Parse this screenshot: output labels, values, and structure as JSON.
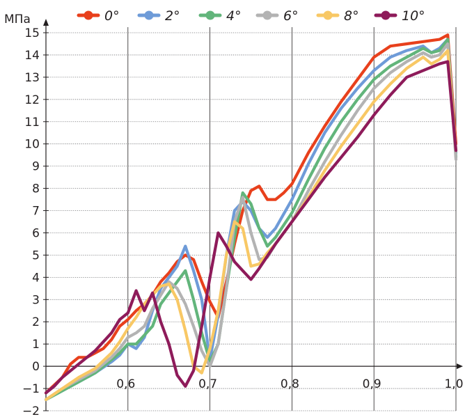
{
  "chart_data": {
    "type": "line",
    "ylabel": "МПа",
    "ylim": [
      -2,
      15
    ],
    "xlim": [
      0.5,
      1.0
    ],
    "yticks": [
      "−2",
      "−1",
      "0",
      "1",
      "2",
      "3",
      "4",
      "5",
      "6",
      "7",
      "8",
      "9",
      "10",
      "11",
      "12",
      "13",
      "14",
      "15"
    ],
    "xticks": [
      "0,6",
      "0,7",
      "0,8",
      "0,9",
      "1,0"
    ],
    "grid": true,
    "legend_position": "top",
    "series": [
      {
        "name": "0°",
        "color": "#e8401c",
        "x": [
          0.5,
          0.52,
          0.53,
          0.54,
          0.55,
          0.56,
          0.57,
          0.58,
          0.59,
          0.6,
          0.61,
          0.62,
          0.63,
          0.64,
          0.65,
          0.66,
          0.67,
          0.68,
          0.69,
          0.7,
          0.71,
          0.72,
          0.73,
          0.74,
          0.75,
          0.76,
          0.77,
          0.78,
          0.79,
          0.8,
          0.82,
          0.84,
          0.86,
          0.88,
          0.9,
          0.92,
          0.94,
          0.96,
          0.98,
          0.99,
          1.0
        ],
        "y": [
          -1.2,
          -0.5,
          0.1,
          0.4,
          0.4,
          0.6,
          0.8,
          1.2,
          1.8,
          2.1,
          2.5,
          2.8,
          3.2,
          3.8,
          4.2,
          4.7,
          5.0,
          4.8,
          3.8,
          2.9,
          2.2,
          3.8,
          5.5,
          7.0,
          7.9,
          8.1,
          7.5,
          7.5,
          7.8,
          8.2,
          9.6,
          10.8,
          11.9,
          12.9,
          13.9,
          14.4,
          14.5,
          14.6,
          14.7,
          14.9,
          10.0
        ]
      },
      {
        "name": "2°",
        "color": "#6e9bd8",
        "x": [
          0.5,
          0.52,
          0.54,
          0.56,
          0.58,
          0.59,
          0.6,
          0.61,
          0.62,
          0.63,
          0.64,
          0.65,
          0.66,
          0.67,
          0.68,
          0.69,
          0.7,
          0.71,
          0.72,
          0.73,
          0.74,
          0.75,
          0.76,
          0.77,
          0.78,
          0.8,
          0.82,
          0.84,
          0.86,
          0.88,
          0.9,
          0.92,
          0.94,
          0.96,
          0.97,
          0.98,
          0.99,
          1.0
        ],
        "y": [
          -1.5,
          -1.1,
          -0.7,
          -0.3,
          0.2,
          0.5,
          1.0,
          0.8,
          1.3,
          2.5,
          3.5,
          4.0,
          4.5,
          5.4,
          4.3,
          3.0,
          0.3,
          2.3,
          5.0,
          7.0,
          7.4,
          7.0,
          6.2,
          5.8,
          6.2,
          7.5,
          9.1,
          10.5,
          11.6,
          12.5,
          13.3,
          13.9,
          14.2,
          14.4,
          14.1,
          14.3,
          14.7,
          9.6
        ]
      },
      {
        "name": "4°",
        "color": "#62b57b",
        "x": [
          0.5,
          0.52,
          0.54,
          0.56,
          0.58,
          0.59,
          0.6,
          0.61,
          0.62,
          0.63,
          0.64,
          0.65,
          0.66,
          0.67,
          0.68,
          0.69,
          0.7,
          0.71,
          0.72,
          0.73,
          0.74,
          0.75,
          0.76,
          0.77,
          0.78,
          0.8,
          0.82,
          0.84,
          0.86,
          0.88,
          0.9,
          0.92,
          0.94,
          0.96,
          0.97,
          0.98,
          0.99,
          1.0
        ],
        "y": [
          -1.5,
          -1.1,
          -0.7,
          -0.3,
          0.3,
          0.6,
          1.0,
          1.0,
          1.4,
          1.8,
          2.8,
          3.3,
          3.8,
          4.3,
          3.0,
          1.5,
          0.2,
          1.0,
          3.5,
          5.8,
          7.8,
          7.3,
          6.2,
          5.4,
          5.8,
          6.9,
          8.4,
          9.8,
          11.0,
          12.0,
          12.9,
          13.5,
          13.9,
          14.3,
          14.1,
          14.2,
          14.7,
          9.4
        ]
      },
      {
        "name": "6°",
        "color": "#b3b3b3",
        "x": [
          0.5,
          0.52,
          0.54,
          0.56,
          0.58,
          0.59,
          0.6,
          0.61,
          0.62,
          0.63,
          0.64,
          0.65,
          0.66,
          0.67,
          0.68,
          0.69,
          0.7,
          0.71,
          0.72,
          0.73,
          0.74,
          0.75,
          0.76,
          0.77,
          0.78,
          0.8,
          0.82,
          0.84,
          0.86,
          0.88,
          0.9,
          0.92,
          0.94,
          0.96,
          0.97,
          0.98,
          0.99,
          1.0
        ],
        "y": [
          -1.5,
          -1.0,
          -0.6,
          -0.2,
          0.4,
          0.8,
          1.3,
          1.5,
          1.8,
          2.6,
          3.2,
          3.8,
          3.5,
          2.8,
          1.8,
          0.7,
          0.0,
          1.0,
          3.5,
          6.5,
          7.6,
          6.0,
          4.8,
          4.9,
          5.5,
          6.5,
          7.9,
          9.2,
          10.4,
          11.5,
          12.5,
          13.2,
          13.7,
          14.1,
          13.9,
          14.0,
          14.5,
          9.3
        ]
      },
      {
        "name": "8°",
        "color": "#f8c865",
        "x": [
          0.5,
          0.52,
          0.54,
          0.56,
          0.58,
          0.59,
          0.6,
          0.61,
          0.62,
          0.63,
          0.64,
          0.65,
          0.66,
          0.67,
          0.68,
          0.69,
          0.7,
          0.71,
          0.72,
          0.73,
          0.74,
          0.75,
          0.76,
          0.77,
          0.78,
          0.8,
          0.82,
          0.84,
          0.86,
          0.88,
          0.9,
          0.92,
          0.94,
          0.96,
          0.97,
          0.98,
          0.99,
          1.0
        ],
        "y": [
          -1.5,
          -1.0,
          -0.5,
          -0.1,
          0.6,
          1.1,
          1.7,
          2.2,
          2.8,
          3.2,
          3.6,
          3.7,
          3.0,
          1.6,
          0.0,
          -0.3,
          0.8,
          2.5,
          5.0,
          6.5,
          6.2,
          4.5,
          4.6,
          5.1,
          5.5,
          6.5,
          7.6,
          8.8,
          9.9,
          10.9,
          11.9,
          12.7,
          13.4,
          13.9,
          13.6,
          13.8,
          14.2,
          9.7
        ]
      },
      {
        "name": "10°",
        "color": "#8e1b5a",
        "x": [
          0.5,
          0.51,
          0.52,
          0.54,
          0.56,
          0.58,
          0.59,
          0.6,
          0.61,
          0.62,
          0.63,
          0.64,
          0.65,
          0.66,
          0.67,
          0.68,
          0.69,
          0.7,
          0.71,
          0.72,
          0.73,
          0.74,
          0.75,
          0.76,
          0.78,
          0.8,
          0.82,
          0.84,
          0.86,
          0.88,
          0.9,
          0.92,
          0.94,
          0.96,
          0.98,
          0.99,
          1.0
        ],
        "y": [
          -1.2,
          -0.9,
          -0.5,
          0.1,
          0.7,
          1.5,
          2.1,
          2.4,
          3.4,
          2.5,
          3.3,
          2.0,
          1.0,
          -0.4,
          -0.9,
          -0.2,
          1.8,
          4.0,
          6.0,
          5.4,
          4.7,
          4.3,
          3.9,
          4.4,
          5.5,
          6.5,
          7.5,
          8.5,
          9.4,
          10.3,
          11.3,
          12.2,
          13.0,
          13.3,
          13.6,
          13.7,
          9.7
        ]
      }
    ]
  }
}
